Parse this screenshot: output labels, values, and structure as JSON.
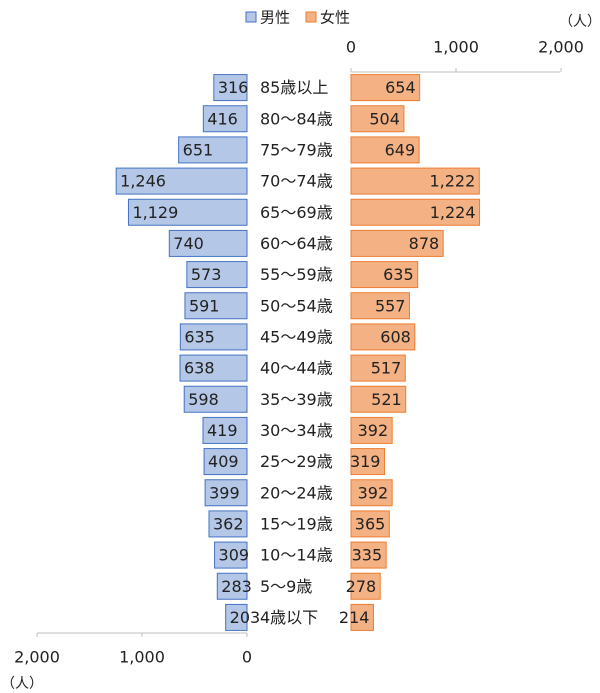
{
  "chart_data": {
    "type": "bar",
    "subtype": "population-pyramid",
    "legend_placement": "top-right",
    "colors": {
      "male_fill": "#B4C7E7",
      "male_stroke": "#4472C4",
      "female_fill": "#F4B183",
      "female_stroke": "#ED7D31"
    },
    "series": [
      {
        "name": "男性",
        "values": [
          316,
          416,
          651,
          1246,
          1129,
          740,
          573,
          591,
          635,
          638,
          598,
          419,
          409,
          399,
          362,
          309,
          283,
          203
        ],
        "labels": [
          "316",
          "416",
          "651",
          "1,246",
          "1,129",
          "740",
          "573",
          "591",
          "635",
          "638",
          "598",
          "419",
          "409",
          "399",
          "362",
          "309",
          "283",
          "203"
        ]
      },
      {
        "name": "女性",
        "values": [
          654,
          504,
          649,
          1222,
          1224,
          878,
          635,
          557,
          608,
          517,
          521,
          392,
          319,
          392,
          365,
          335,
          278,
          214
        ],
        "labels": [
          "654",
          "504",
          "649",
          "1,222",
          "1,224",
          "878",
          "635",
          "557",
          "608",
          "517",
          "521",
          "392",
          "319",
          "392",
          "365",
          "335",
          "278",
          "214"
        ]
      }
    ],
    "categories": [
      "85歳以上",
      "80～84歳",
      "75～79歳",
      "70～74歳",
      "65～69歳",
      "60～64歳",
      "55～59歳",
      "50～54歳",
      "45～49歳",
      "40～44歳",
      "35～39歳",
      "30～34歳",
      "25～29歳",
      "20～24歳",
      "15～19歳",
      "10～14歳",
      "5～9歳",
      "4歳以下"
    ],
    "xlim": [
      0,
      2000
    ],
    "male_ticks": [
      "2,000",
      "1,000",
      "0"
    ],
    "female_ticks": [
      "0",
      "1,000",
      "2,000"
    ],
    "unit_label": "（人）"
  }
}
